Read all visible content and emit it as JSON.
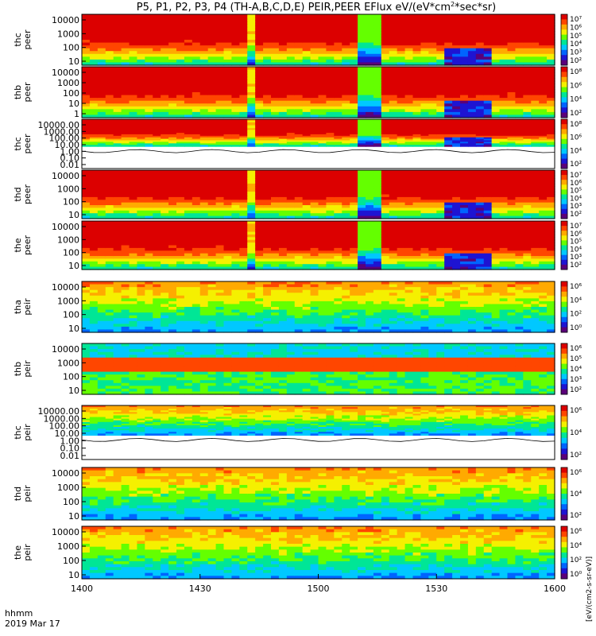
{
  "chart_data": {
    "type": "heatmap",
    "title": "P5, P1, P2, P3, P4 (TH-A,B,C,D,E) PEIR,PEER EFlux eV/(eV*cm^2*sec*sr)",
    "title_main": "P5, P1, P2, P3, P4 (TH-A,B,C,D,E) PEIR,PEER EFlux eV/(eV*cm",
    "title_sup": "2",
    "title_end": "*sec*sr)",
    "x_ticks": [
      "1400",
      "1430",
      "1500",
      "1530",
      "1600"
    ],
    "x_tick_values": [
      0,
      30,
      60,
      90,
      120
    ],
    "x_range_minutes": [
      0,
      120
    ],
    "x_footer": {
      "line1": "hhmm",
      "line2": "2019 Mar 17"
    },
    "colorbar_label": "[eV/(cm2-s-sr-eV)]",
    "colormap": [
      "#5a007a",
      "#1e14d2",
      "#0064ff",
      "#00c8ff",
      "#00e696",
      "#64ff00",
      "#f5f000",
      "#ffaa00",
      "#ff4600",
      "#dc0000"
    ],
    "panels": [
      {
        "ylabel": [
          "thc",
          "peer"
        ],
        "yticks": [
          "10000",
          "1000",
          "100",
          "10"
        ],
        "kind": "peer",
        "cb_ticks": [
          "10⁷",
          "10⁶",
          "10⁵",
          "10⁴",
          "10³",
          "10²"
        ]
      },
      {
        "ylabel": [
          "thb",
          "peer"
        ],
        "yticks": [
          "10000",
          "1000",
          "100",
          "10",
          "1"
        ],
        "kind": "peer_noisy",
        "cb_ticks": [
          "10⁸",
          "10⁶",
          "10⁴",
          "10²"
        ]
      },
      {
        "ylabel": [
          "thc",
          "peer"
        ],
        "yticks": [
          "10000.00",
          "1000.00",
          "100.00",
          "10.00",
          "1.00",
          "0.10",
          "0.01"
        ],
        "kind": "peer_split",
        "cb_ticks": [
          "10⁸",
          "10⁶",
          "10⁴",
          "10²"
        ]
      },
      {
        "ylabel": [
          "thd",
          "peer"
        ],
        "yticks": [
          "10000",
          "1000",
          "100",
          "10"
        ],
        "kind": "peer",
        "cb_ticks": [
          "10⁷",
          "10⁶",
          "10⁵",
          "10⁴",
          "10³",
          "10²"
        ]
      },
      {
        "ylabel": [
          "the",
          "peer"
        ],
        "yticks": [
          "10000",
          "1000",
          "100",
          "10"
        ],
        "kind": "peer",
        "cb_ticks": [
          "10⁷",
          "10⁶",
          "10⁵",
          "10⁴",
          "10³",
          "10²"
        ]
      },
      {
        "ylabel": [
          "tha",
          "peir"
        ],
        "yticks": [
          "10000",
          "1000",
          "100",
          "10"
        ],
        "kind": "peir",
        "cb_ticks": [
          "10⁶",
          "10⁴",
          "10²",
          "10⁰"
        ]
      },
      {
        "ylabel": [
          "thb",
          "peir"
        ],
        "yticks": [
          "10000",
          "1000",
          "100",
          "10"
        ],
        "kind": "peir_blue",
        "cb_ticks": [
          "10⁶",
          "10⁵",
          "10⁴",
          "10³",
          "10²"
        ]
      },
      {
        "ylabel": [
          "thc",
          "peir"
        ],
        "yticks": [
          "10000.00",
          "1000.00",
          "100.00",
          "10.00",
          "1.00",
          "0.10",
          "0.01"
        ],
        "kind": "peir_split",
        "cb_ticks": [
          "10⁶",
          "10⁴",
          "10²"
        ]
      },
      {
        "ylabel": [
          "thd",
          "peir"
        ],
        "yticks": [
          "10000",
          "1000",
          "100",
          "10"
        ],
        "kind": "peir",
        "cb_ticks": [
          "10⁶",
          "10⁴",
          "10²"
        ]
      },
      {
        "ylabel": [
          "the",
          "peir"
        ],
        "yticks": [
          "10000",
          "1000",
          "100",
          "10"
        ],
        "kind": "peir",
        "cb_ticks": [
          "10⁶",
          "10⁴",
          "10²",
          "10⁰"
        ]
      }
    ]
  }
}
